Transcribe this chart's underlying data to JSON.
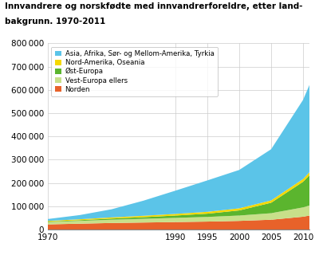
{
  "title_line1": "Innvandrere og norskfødte med innvandrerforeldre, etter land-",
  "title_line2": "bakgrunn. 1970-2011",
  "years": [
    1970,
    1975,
    1980,
    1985,
    1990,
    1995,
    2000,
    2005,
    2010,
    2011
  ],
  "series": {
    "Norden": [
      22000,
      25000,
      28000,
      30000,
      32000,
      34000,
      37000,
      42000,
      55000,
      60000
    ],
    "Vest-Europa ellers": [
      10000,
      12000,
      14000,
      16000,
      18000,
      20000,
      23000,
      28000,
      40000,
      43000
    ],
    "Øst-Europa": [
      2000,
      3000,
      5000,
      7000,
      10000,
      14000,
      22000,
      45000,
      110000,
      130000
    ],
    "Nord-Amerika, Oseania": [
      3000,
      4000,
      5000,
      6000,
      7000,
      8000,
      9000,
      10000,
      12000,
      13000
    ],
    "Asia, Afrika, Sør- og Mellom-Amerika, Tyrkia": [
      8000,
      18000,
      35000,
      65000,
      100000,
      135000,
      165000,
      220000,
      340000,
      375000
    ]
  },
  "colors": {
    "Norden": "#E8622A",
    "Vest-Europa ellers": "#C8E08A",
    "Øst-Europa": "#5BB52E",
    "Nord-Amerika, Oseania": "#F5D800",
    "Asia, Afrika, Sør- og Mellom-Amerika, Tyrkia": "#5BC4E8"
  },
  "ylim": [
    0,
    800000
  ],
  "yticks": [
    0,
    100000,
    200000,
    300000,
    400000,
    500000,
    600000,
    700000,
    800000
  ],
  "xticks": [
    1970,
    1990,
    1995,
    2000,
    2005,
    2010
  ],
  "legend_order": [
    "Asia, Afrika, Sør- og Mellom-Amerika, Tyrkia",
    "Nord-Amerika, Oseania",
    "Øst-Europa",
    "Vest-Europa ellers",
    "Norden"
  ],
  "bg_color": "#ffffff",
  "grid_color": "#cccccc"
}
